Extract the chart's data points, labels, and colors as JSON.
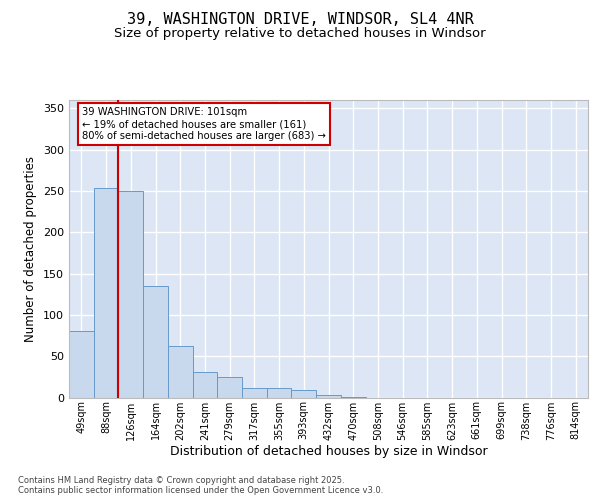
{
  "title_line1": "39, WASHINGTON DRIVE, WINDSOR, SL4 4NR",
  "title_line2": "Size of property relative to detached houses in Windsor",
  "xlabel": "Distribution of detached houses by size in Windsor",
  "ylabel": "Number of detached properties",
  "categories": [
    "49sqm",
    "88sqm",
    "126sqm",
    "164sqm",
    "202sqm",
    "241sqm",
    "279sqm",
    "317sqm",
    "355sqm",
    "393sqm",
    "432sqm",
    "470sqm",
    "508sqm",
    "546sqm",
    "585sqm",
    "623sqm",
    "661sqm",
    "699sqm",
    "738sqm",
    "776sqm",
    "814sqm"
  ],
  "values": [
    80,
    253,
    250,
    135,
    62,
    31,
    25,
    12,
    11,
    9,
    3,
    1,
    0,
    0,
    0,
    0,
    0,
    0,
    0,
    0,
    0
  ],
  "bar_color": "#c8d8ed",
  "bar_edge_color": "#6699cc",
  "background_color": "#dce6f5",
  "grid_color": "#ffffff",
  "fig_bg_color": "#ffffff",
  "ylim": [
    0,
    360
  ],
  "yticks": [
    0,
    50,
    100,
    150,
    200,
    250,
    300,
    350
  ],
  "annotation_text_line1": "39 WASHINGTON DRIVE: 101sqm",
  "annotation_text_line2": "← 19% of detached houses are smaller (161)",
  "annotation_text_line3": "80% of semi-detached houses are larger (683) →",
  "annotation_box_bg": "#ffffff",
  "annotation_box_edge": "#cc0000",
  "red_line_color": "#cc0000",
  "red_line_x": 1.5,
  "footer_text": "Contains HM Land Registry data © Crown copyright and database right 2025.\nContains public sector information licensed under the Open Government Licence v3.0."
}
